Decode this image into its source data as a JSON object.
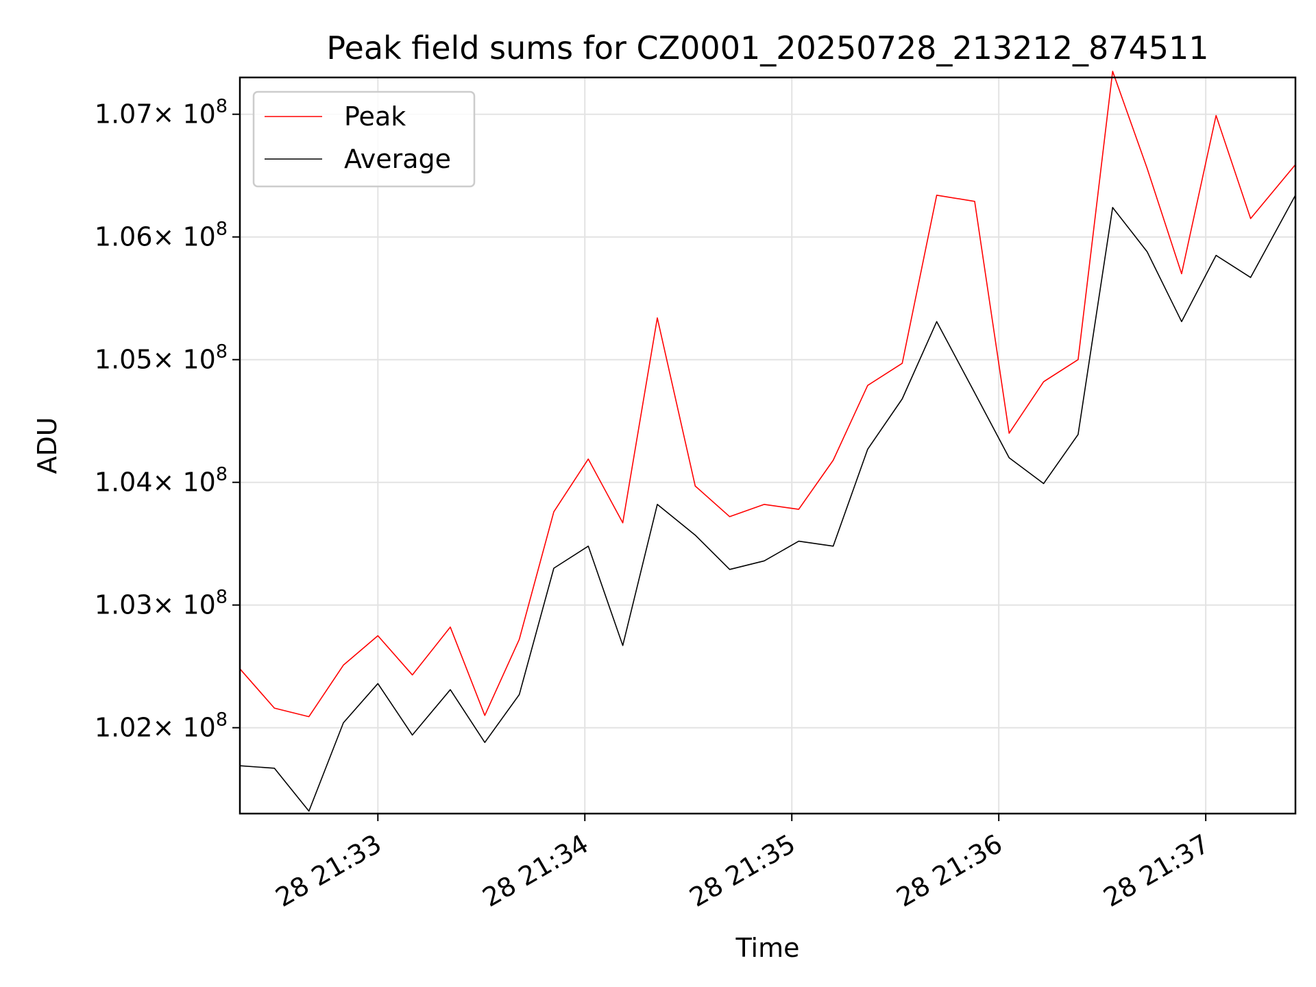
{
  "chart_data": {
    "type": "line",
    "title": "Peak field sums for CZ0001_20250728_213212_874511",
    "xlabel": "Time",
    "ylabel": "ADU",
    "grid": true,
    "legend_position": "top-left",
    "x_tick_labels": [
      "28 21:33",
      "28 21:34",
      "28 21:35",
      "28 21:36",
      "28 21:37"
    ],
    "y_tick_labels": [
      "1.02",
      "1.03",
      "1.04",
      "1.05",
      "1.06",
      "1.07"
    ],
    "y_tick_multiplier": "× 10",
    "y_tick_exponent": "8",
    "y_ticks": [
      102000000,
      103000000,
      104000000,
      105000000,
      106000000,
      107000000
    ],
    "ylim": [
      101300000,
      107300000
    ],
    "xlim": [
      "2025-07-28 21:32:20",
      "2025-07-28 21:37:26"
    ],
    "x_ticks": [
      "2025-07-28 21:33:00",
      "2025-07-28 21:34:00",
      "2025-07-28 21:35:00",
      "2025-07-28 21:36:00",
      "2025-07-28 21:37:00"
    ],
    "x": [
      "2025-07-28 21:32:20",
      "2025-07-28 21:32:30",
      "2025-07-28 21:32:40",
      "2025-07-28 21:32:50",
      "2025-07-28 21:33:00",
      "2025-07-28 21:33:10",
      "2025-07-28 21:33:21",
      "2025-07-28 21:33:31",
      "2025-07-28 21:33:41",
      "2025-07-28 21:33:51",
      "2025-07-28 21:34:01",
      "2025-07-28 21:34:11",
      "2025-07-28 21:34:21",
      "2025-07-28 21:34:32",
      "2025-07-28 21:34:42",
      "2025-07-28 21:34:52",
      "2025-07-28 21:35:02",
      "2025-07-28 21:35:12",
      "2025-07-28 21:35:22",
      "2025-07-28 21:35:32",
      "2025-07-28 21:35:42",
      "2025-07-28 21:35:53",
      "2025-07-28 21:36:03",
      "2025-07-28 21:36:13",
      "2025-07-28 21:36:23",
      "2025-07-28 21:36:33",
      "2025-07-28 21:36:43",
      "2025-07-28 21:36:53",
      "2025-07-28 21:37:03",
      "2025-07-28 21:37:13",
      "2025-07-28 21:37:26"
    ],
    "series": [
      {
        "name": "Peak",
        "color": "#ff0000",
        "values": [
          102480000,
          102160000,
          102090000,
          102510000,
          102750000,
          102430000,
          102820000,
          102100000,
          102720000,
          103760000,
          104190000,
          103670000,
          105340000,
          103970000,
          103720000,
          103820000,
          103780000,
          104180000,
          104790000,
          104970000,
          106340000,
          106290000,
          104400000,
          104820000,
          105000000,
          107350000,
          106560000,
          105700000,
          106990000,
          106150000,
          106590000
        ]
      },
      {
        "name": "Average",
        "color": "#000000",
        "values": [
          101690000,
          101670000,
          101320000,
          102040000,
          102360000,
          101940000,
          102310000,
          101880000,
          102270000,
          103300000,
          103480000,
          102670000,
          103820000,
          103570000,
          103290000,
          103360000,
          103520000,
          103480000,
          104270000,
          104680000,
          105310000,
          104730000,
          104200000,
          103990000,
          104390000,
          106240000,
          105880000,
          105310000,
          105850000,
          105670000,
          106340000
        ]
      }
    ]
  }
}
